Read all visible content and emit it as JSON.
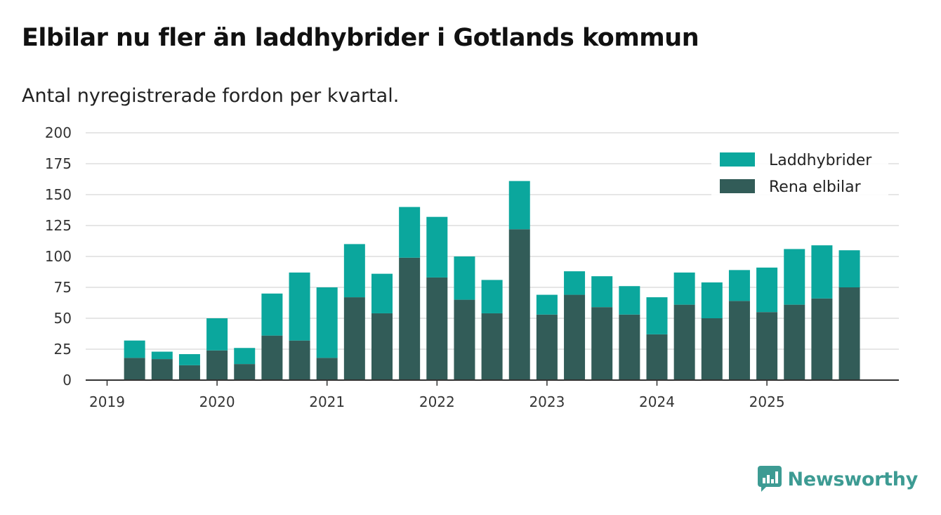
{
  "title": "Elbilar nu fler än laddhybrider i Gotlands kommun",
  "subtitle": "Antal nyregistrerade fordon per kvartal.",
  "brand": "Newsworthy",
  "colors": {
    "laddhybrider": "#0ba79d",
    "rena_elbilar": "#325c58",
    "grid": "#dddddd",
    "axis": "#333333",
    "brand": "#3d9b93"
  },
  "chart_data": {
    "type": "bar",
    "stacked": true,
    "title": "Elbilar nu fler än laddhybrider i Gotlands kommun",
    "subtitle": "Antal nyregistrerade fordon per kvartal.",
    "xlabel": "",
    "ylabel": "",
    "ylim": [
      0,
      200
    ],
    "yticks": [
      0,
      25,
      50,
      75,
      100,
      125,
      150,
      175,
      200
    ],
    "xtick_labels": [
      "2019",
      "2020",
      "2021",
      "2022",
      "2023",
      "2024",
      "2025"
    ],
    "legend_position": "top-right",
    "categories": [
      "2019 Q1",
      "2019 Q2",
      "2019 Q3",
      "2019 Q4",
      "2020 Q1",
      "2020 Q2",
      "2020 Q3",
      "2020 Q4",
      "2021 Q1",
      "2021 Q2",
      "2021 Q3",
      "2021 Q4",
      "2022 Q1",
      "2022 Q2",
      "2022 Q3",
      "2022 Q4",
      "2023 Q1",
      "2023 Q2",
      "2023 Q3",
      "2023 Q4",
      "2024 Q1",
      "2024 Q2",
      "2024 Q3",
      "2024 Q4",
      "2025 Q1",
      "2025 Q2",
      "2025 Q3",
      "2025 Q4"
    ],
    "series": [
      {
        "name": "Rena elbilar",
        "color": "#325c58",
        "values": [
          0,
          18,
          17,
          12,
          24,
          13,
          36,
          32,
          18,
          67,
          54,
          99,
          83,
          65,
          54,
          122,
          53,
          69,
          59,
          53,
          37,
          61,
          50,
          64,
          55,
          61,
          66,
          75
        ]
      },
      {
        "name": "Laddhybrider",
        "color": "#0ba79d",
        "values": [
          0,
          14,
          6,
          9,
          26,
          13,
          34,
          55,
          57,
          43,
          32,
          41,
          49,
          35,
          27,
          39,
          16,
          19,
          25,
          23,
          30,
          26,
          29,
          25,
          36,
          45,
          43,
          30
        ]
      }
    ]
  }
}
